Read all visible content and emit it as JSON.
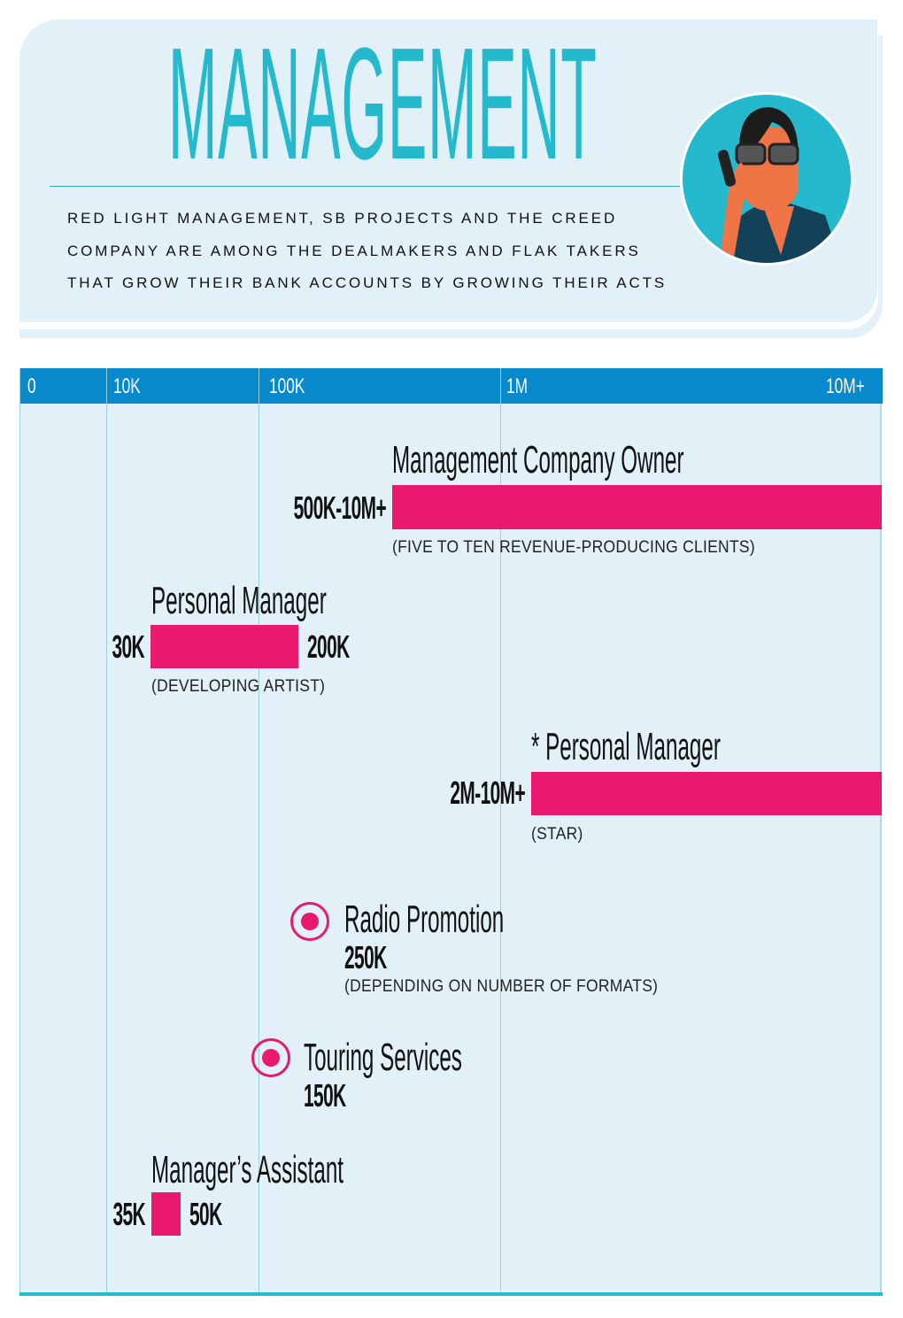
{
  "header": {
    "title": "MANAGEMENT",
    "subtitle_lines": [
      "RED LIGHT MANAGEMENT, SB PROJECTS AND THE CREED",
      "COMPANY ARE AMONG THE DEALMAKERS AND FLAK TAKERS",
      "THAT GROW THEIR BANK ACCOUNTS BY GROWING THEIR ACTS"
    ]
  },
  "colors": {
    "accent": "#25b9cd",
    "axis": "#0789cc",
    "bar": "#e8196e",
    "background": "#e1f1f7"
  },
  "chart_data": {
    "type": "bar",
    "orientation": "horizontal",
    "title": "MANAGEMENT",
    "x_ticks": [
      "0",
      "10K",
      "100K",
      "1M",
      "10M+"
    ],
    "x_tick_values": [
      0,
      10000,
      100000,
      1000000,
      10000000
    ],
    "grid": true,
    "items": [
      {
        "name": "Management Company Owner",
        "kind": "range",
        "low": 500000,
        "high": 10000000,
        "low_label": "500K-10M+",
        "high_label": "",
        "note": "(FIVE TO TEN REVENUE-PRODUCING CLIENTS)",
        "star": ""
      },
      {
        "name": "Personal Manager",
        "kind": "range",
        "low": 30000,
        "high": 200000,
        "low_label": "30K",
        "high_label": "200K",
        "note": "(DEVELOPING ARTIST)",
        "star": ""
      },
      {
        "name": "Personal Manager",
        "kind": "range",
        "low": 2000000,
        "high": 10000000,
        "low_label": "2M-10M+",
        "high_label": "",
        "note": "(STAR)",
        "star": "*"
      },
      {
        "name": "Radio Promotion",
        "kind": "point",
        "value": 250000,
        "value_label": "250K",
        "note": "(DEPENDING ON NUMBER OF FORMATS)"
      },
      {
        "name": "Touring Services",
        "kind": "point",
        "value": 150000,
        "value_label": "150K",
        "note": ""
      },
      {
        "name": "Manager’s Assistant",
        "kind": "range",
        "low": 35000,
        "high": 50000,
        "low_label": "35K",
        "high_label": "50K",
        "note": ""
      }
    ]
  }
}
